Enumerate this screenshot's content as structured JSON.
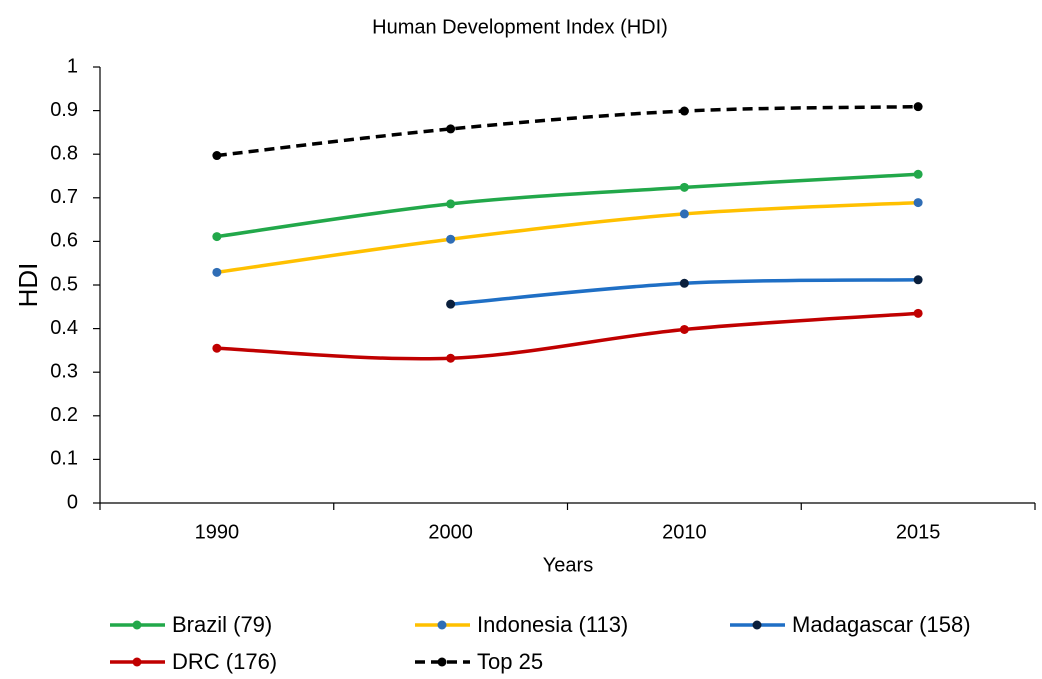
{
  "chart_data": {
    "type": "line",
    "title": "Human Development Index (HDI)",
    "x_label": "Years",
    "y_label": "HDI",
    "categories": [
      "1990",
      "2000",
      "2010",
      "2015"
    ],
    "series": [
      {
        "name": "Brazil (79)",
        "color": "#22a84a",
        "marker_color": "#22a84a",
        "dash": false,
        "values": [
          0.611,
          0.686,
          0.724,
          0.754
        ]
      },
      {
        "name": "Indonesia (113)",
        "color": "#ffc000",
        "marker_color": "#2f6db5",
        "dash": false,
        "values": [
          0.529,
          0.605,
          0.663,
          0.689
        ]
      },
      {
        "name": "Madagascar (158)",
        "color": "#1f6fc5",
        "marker_color": "#0a1f3c",
        "dash": false,
        "values": [
          null,
          0.456,
          0.504,
          0.512
        ]
      },
      {
        "name": "DRC (176)",
        "color": "#c00000",
        "marker_color": "#c00000",
        "dash": false,
        "values": [
          0.355,
          0.332,
          0.398,
          0.435
        ]
      },
      {
        "name": "Top 25",
        "color": "#000000",
        "marker_color": "#000000",
        "dash": true,
        "values": [
          0.797,
          0.858,
          0.899,
          0.909
        ]
      }
    ],
    "ylim": [
      0,
      1
    ],
    "yticks": [
      0,
      0.1,
      0.2,
      0.3,
      0.4,
      0.5,
      0.6,
      0.7,
      0.8,
      0.9,
      1
    ],
    "grid": false,
    "legend": "bottom"
  }
}
